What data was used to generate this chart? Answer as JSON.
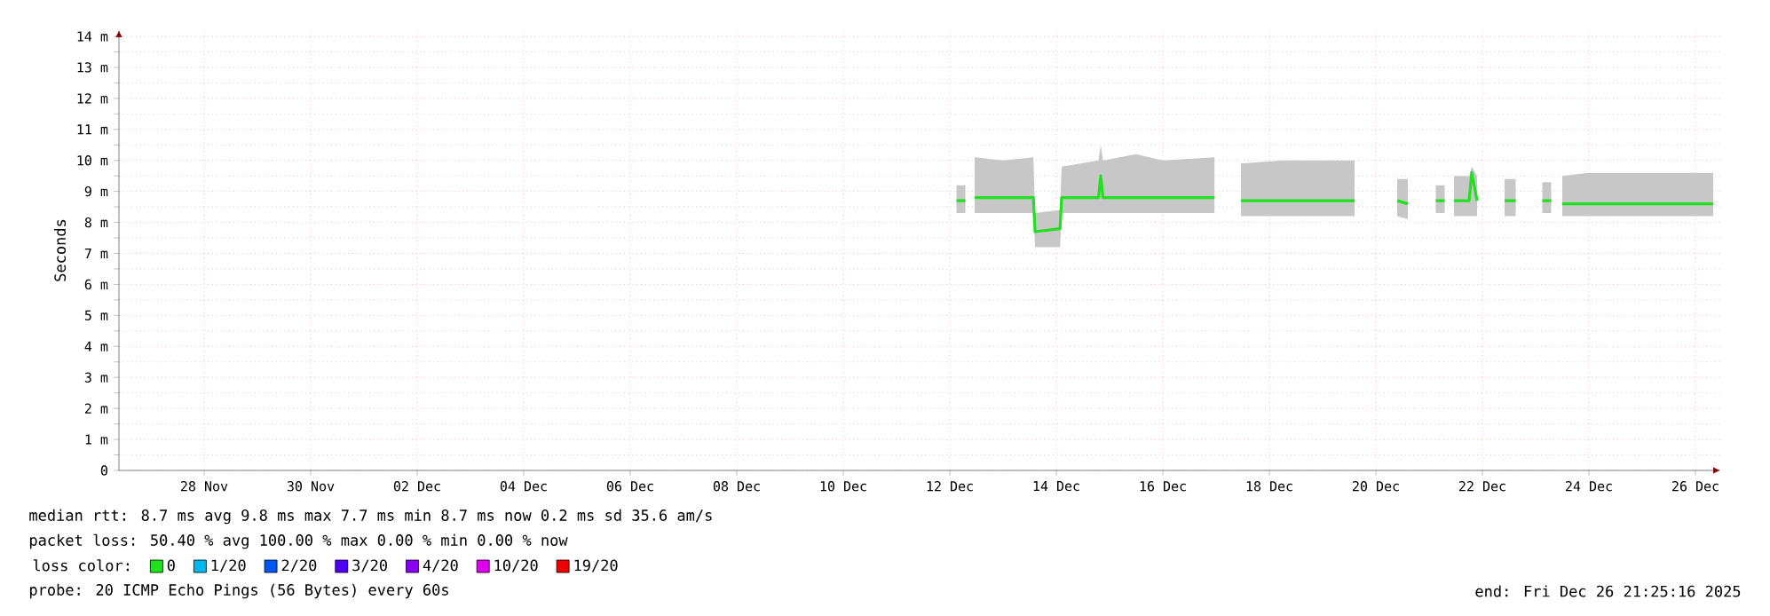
{
  "chart_data": {
    "type": "line",
    "ylabel": "Seconds",
    "legend_title": "loss color:",
    "legend": "bottom",
    "grid": true,
    "x": [
      "2025-12-12T15:00",
      "2025-12-12T19:00",
      "2025-12-12T20:00",
      "2025-12-12T23:12",
      "2025-12-13T12:00",
      "2025-12-14T01:40",
      "2025-12-14T02:24",
      "2025-12-14T13:40",
      "2025-12-14T14:24",
      "2025-12-15T07:00",
      "2025-12-15T08:00",
      "2025-12-15T09:00",
      "2025-12-16T00:00",
      "2025-12-16T12:00",
      "2025-12-17T11:15",
      "2025-12-17T17:00",
      "2025-12-17T23:12",
      "2025-12-18T18:00",
      "2025-12-20T02:24",
      "2025-12-20T12:00",
      "2025-12-20T21:36",
      "2025-12-21T02:24",
      "2025-12-21T10:00",
      "2025-12-21T15:00",
      "2025-12-21T19:00",
      "2025-12-21T20:00",
      "2025-12-21T23:12",
      "2025-12-22T06:00",
      "2025-12-22T07:12",
      "2025-12-22T09:36",
      "2025-12-22T16:00",
      "2025-12-22T22:00",
      "2025-12-23T03:00",
      "2025-12-23T08:00",
      "2025-12-23T15:00",
      "2025-12-23T19:00",
      "2025-12-23T20:00",
      "2025-12-24T00:00",
      "2025-12-24T12:00",
      "2025-12-25T12:00",
      "2025-12-26T20:00"
    ],
    "series": [
      {
        "name": "0",
        "color": "#20e020",
        "values": [
          8.7,
          8.7,
          null,
          8.8,
          8.8,
          8.8,
          7.7,
          7.8,
          8.8,
          8.8,
          9.5,
          8.8,
          8.8,
          8.8,
          8.8,
          null,
          8.7,
          8.7,
          8.7,
          null,
          8.7,
          8.6,
          null,
          8.7,
          8.7,
          null,
          8.7,
          8.7,
          9.6,
          8.7,
          null,
          8.7,
          8.7,
          null,
          8.7,
          8.7,
          null,
          8.6,
          8.6,
          8.6,
          8.6
        ],
        "lower": [
          8.3,
          8.3,
          null,
          8.3,
          8.3,
          8.3,
          7.2,
          7.2,
          8.3,
          8.3,
          8.3,
          8.3,
          8.3,
          8.3,
          8.3,
          null,
          8.2,
          8.2,
          8.2,
          null,
          8.2,
          8.1,
          null,
          8.3,
          8.3,
          null,
          8.2,
          8.2,
          8.2,
          8.2,
          null,
          8.2,
          8.2,
          null,
          8.3,
          8.3,
          null,
          8.2,
          8.2,
          8.2,
          8.2
        ],
        "upper": [
          9.2,
          9.2,
          null,
          10.1,
          10.0,
          10.1,
          8.3,
          8.4,
          9.8,
          10.0,
          10.5,
          10.0,
          10.2,
          10.0,
          10.1,
          null,
          9.9,
          10.0,
          10.0,
          null,
          9.4,
          9.4,
          null,
          9.2,
          9.2,
          null,
          9.5,
          9.5,
          9.8,
          9.5,
          null,
          9.4,
          9.4,
          null,
          9.3,
          9.3,
          null,
          9.5,
          9.6,
          9.6,
          9.6
        ]
      },
      {
        "name": "1/20",
        "color": "#00b8f0",
        "values": [
          null,
          null,
          null,
          null,
          null,
          null,
          null,
          null,
          null,
          null,
          null,
          null,
          null,
          null,
          null,
          null,
          null,
          null,
          null,
          null,
          null,
          null,
          null,
          null,
          null,
          null,
          null,
          null,
          null,
          null,
          null,
          null,
          null,
          null,
          null,
          null,
          null,
          null,
          null,
          null,
          null
        ]
      },
      {
        "name": "2/20",
        "color": "#0058f0",
        "values": [
          null,
          null,
          null,
          null,
          null,
          null,
          null,
          null,
          null,
          null,
          null,
          null,
          null,
          null,
          null,
          null,
          null,
          null,
          null,
          null,
          null,
          null,
          null,
          null,
          null,
          null,
          null,
          null,
          null,
          null,
          null,
          null,
          null,
          null,
          null,
          null,
          null,
          null,
          null,
          null,
          null
        ]
      },
      {
        "name": "3/20",
        "color": "#5000f0",
        "values": [
          null,
          null,
          null,
          null,
          null,
          null,
          null,
          null,
          null,
          null,
          null,
          null,
          null,
          null,
          null,
          null,
          null,
          null,
          null,
          null,
          null,
          null,
          null,
          null,
          null,
          null,
          null,
          null,
          null,
          null,
          null,
          null,
          null,
          null,
          null,
          null,
          null,
          null,
          null,
          null,
          null
        ]
      },
      {
        "name": "4/20",
        "color": "#8800f0",
        "values": [
          null,
          null,
          null,
          null,
          null,
          null,
          null,
          null,
          null,
          null,
          null,
          null,
          null,
          null,
          null,
          null,
          null,
          null,
          null,
          null,
          null,
          null,
          null,
          null,
          null,
          null,
          null,
          null,
          null,
          null,
          null,
          null,
          null,
          null,
          null,
          null,
          null,
          null,
          null,
          null,
          null
        ]
      },
      {
        "name": "10/20",
        "color": "#e000f0",
        "values": [
          null,
          null,
          null,
          null,
          null,
          null,
          null,
          null,
          null,
          null,
          null,
          null,
          null,
          null,
          null,
          null,
          null,
          null,
          null,
          null,
          null,
          null,
          null,
          null,
          null,
          null,
          null,
          null,
          null,
          null,
          null,
          null,
          null,
          null,
          null,
          null,
          null,
          null,
          null,
          null,
          null
        ]
      },
      {
        "name": "19/20",
        "color": "#f00000",
        "values": [
          null,
          null,
          null,
          null,
          null,
          null,
          null,
          null,
          null,
          null,
          null,
          null,
          null,
          null,
          null,
          null,
          null,
          null,
          null,
          null,
          null,
          null,
          null,
          null,
          null,
          null,
          null,
          null,
          null,
          null,
          null,
          null,
          null,
          null,
          null,
          null,
          null,
          null,
          null,
          null,
          null
        ]
      }
    ],
    "xlim": [
      "2025-11-26T21:36",
      "2025-12-26T23:12"
    ],
    "xticks": [
      {
        "value": "2025-11-28T12:00",
        "label": "28 Nov"
      },
      {
        "value": "2025-11-30T12:00",
        "label": "30 Nov"
      },
      {
        "value": "2025-12-02T12:00",
        "label": "02 Dec"
      },
      {
        "value": "2025-12-04T12:00",
        "label": "04 Dec"
      },
      {
        "value": "2025-12-06T12:00",
        "label": "06 Dec"
      },
      {
        "value": "2025-12-08T12:00",
        "label": "08 Dec"
      },
      {
        "value": "2025-12-10T12:00",
        "label": "10 Dec"
      },
      {
        "value": "2025-12-12T12:00",
        "label": "12 Dec"
      },
      {
        "value": "2025-12-14T12:00",
        "label": "14 Dec"
      },
      {
        "value": "2025-12-16T12:00",
        "label": "16 Dec"
      },
      {
        "value": "2025-12-18T12:00",
        "label": "18 Dec"
      },
      {
        "value": "2025-12-20T12:00",
        "label": "20 Dec"
      },
      {
        "value": "2025-12-22T12:00",
        "label": "22 Dec"
      },
      {
        "value": "2025-12-24T12:00",
        "label": "24 Dec"
      },
      {
        "value": "2025-12-26T12:00",
        "label": "26 Dec"
      }
    ],
    "ylim": [
      0,
      14.2
    ],
    "yticks": [
      0,
      {
        "value": 1,
        "label": "1 m"
      },
      {
        "value": 2,
        "label": "2 m"
      },
      {
        "value": 3,
        "label": "3 m"
      },
      {
        "value": 4,
        "label": "4 m"
      },
      {
        "value": 5,
        "label": "5 m"
      },
      {
        "value": 6,
        "label": "6 m"
      },
      {
        "value": 7,
        "label": "7 m"
      },
      {
        "value": 8,
        "label": "8 m"
      },
      {
        "value": 9,
        "label": "9 m"
      },
      {
        "value": 10,
        "label": "10 m"
      },
      {
        "value": 11,
        "label": "11 m"
      },
      {
        "value": 12,
        "label": "12 m"
      },
      {
        "value": 13,
        "label": "13 m"
      },
      {
        "value": 14,
        "label": "14 m"
      }
    ],
    "annotations": [
      "median rtt:  8.7 ms avg  9.8 ms max  7.7 ms min  8.7 ms now  0.2 ms sd  35.6   am/s",
      "packet loss: 50.40 % avg  100.00 % max  0.00 % min  0.00 % now",
      "probe:       20 ICMP Echo Pings (56 Bytes) every 60s",
      "end: Fri Dec 26 21:25:16 2025"
    ]
  }
}
